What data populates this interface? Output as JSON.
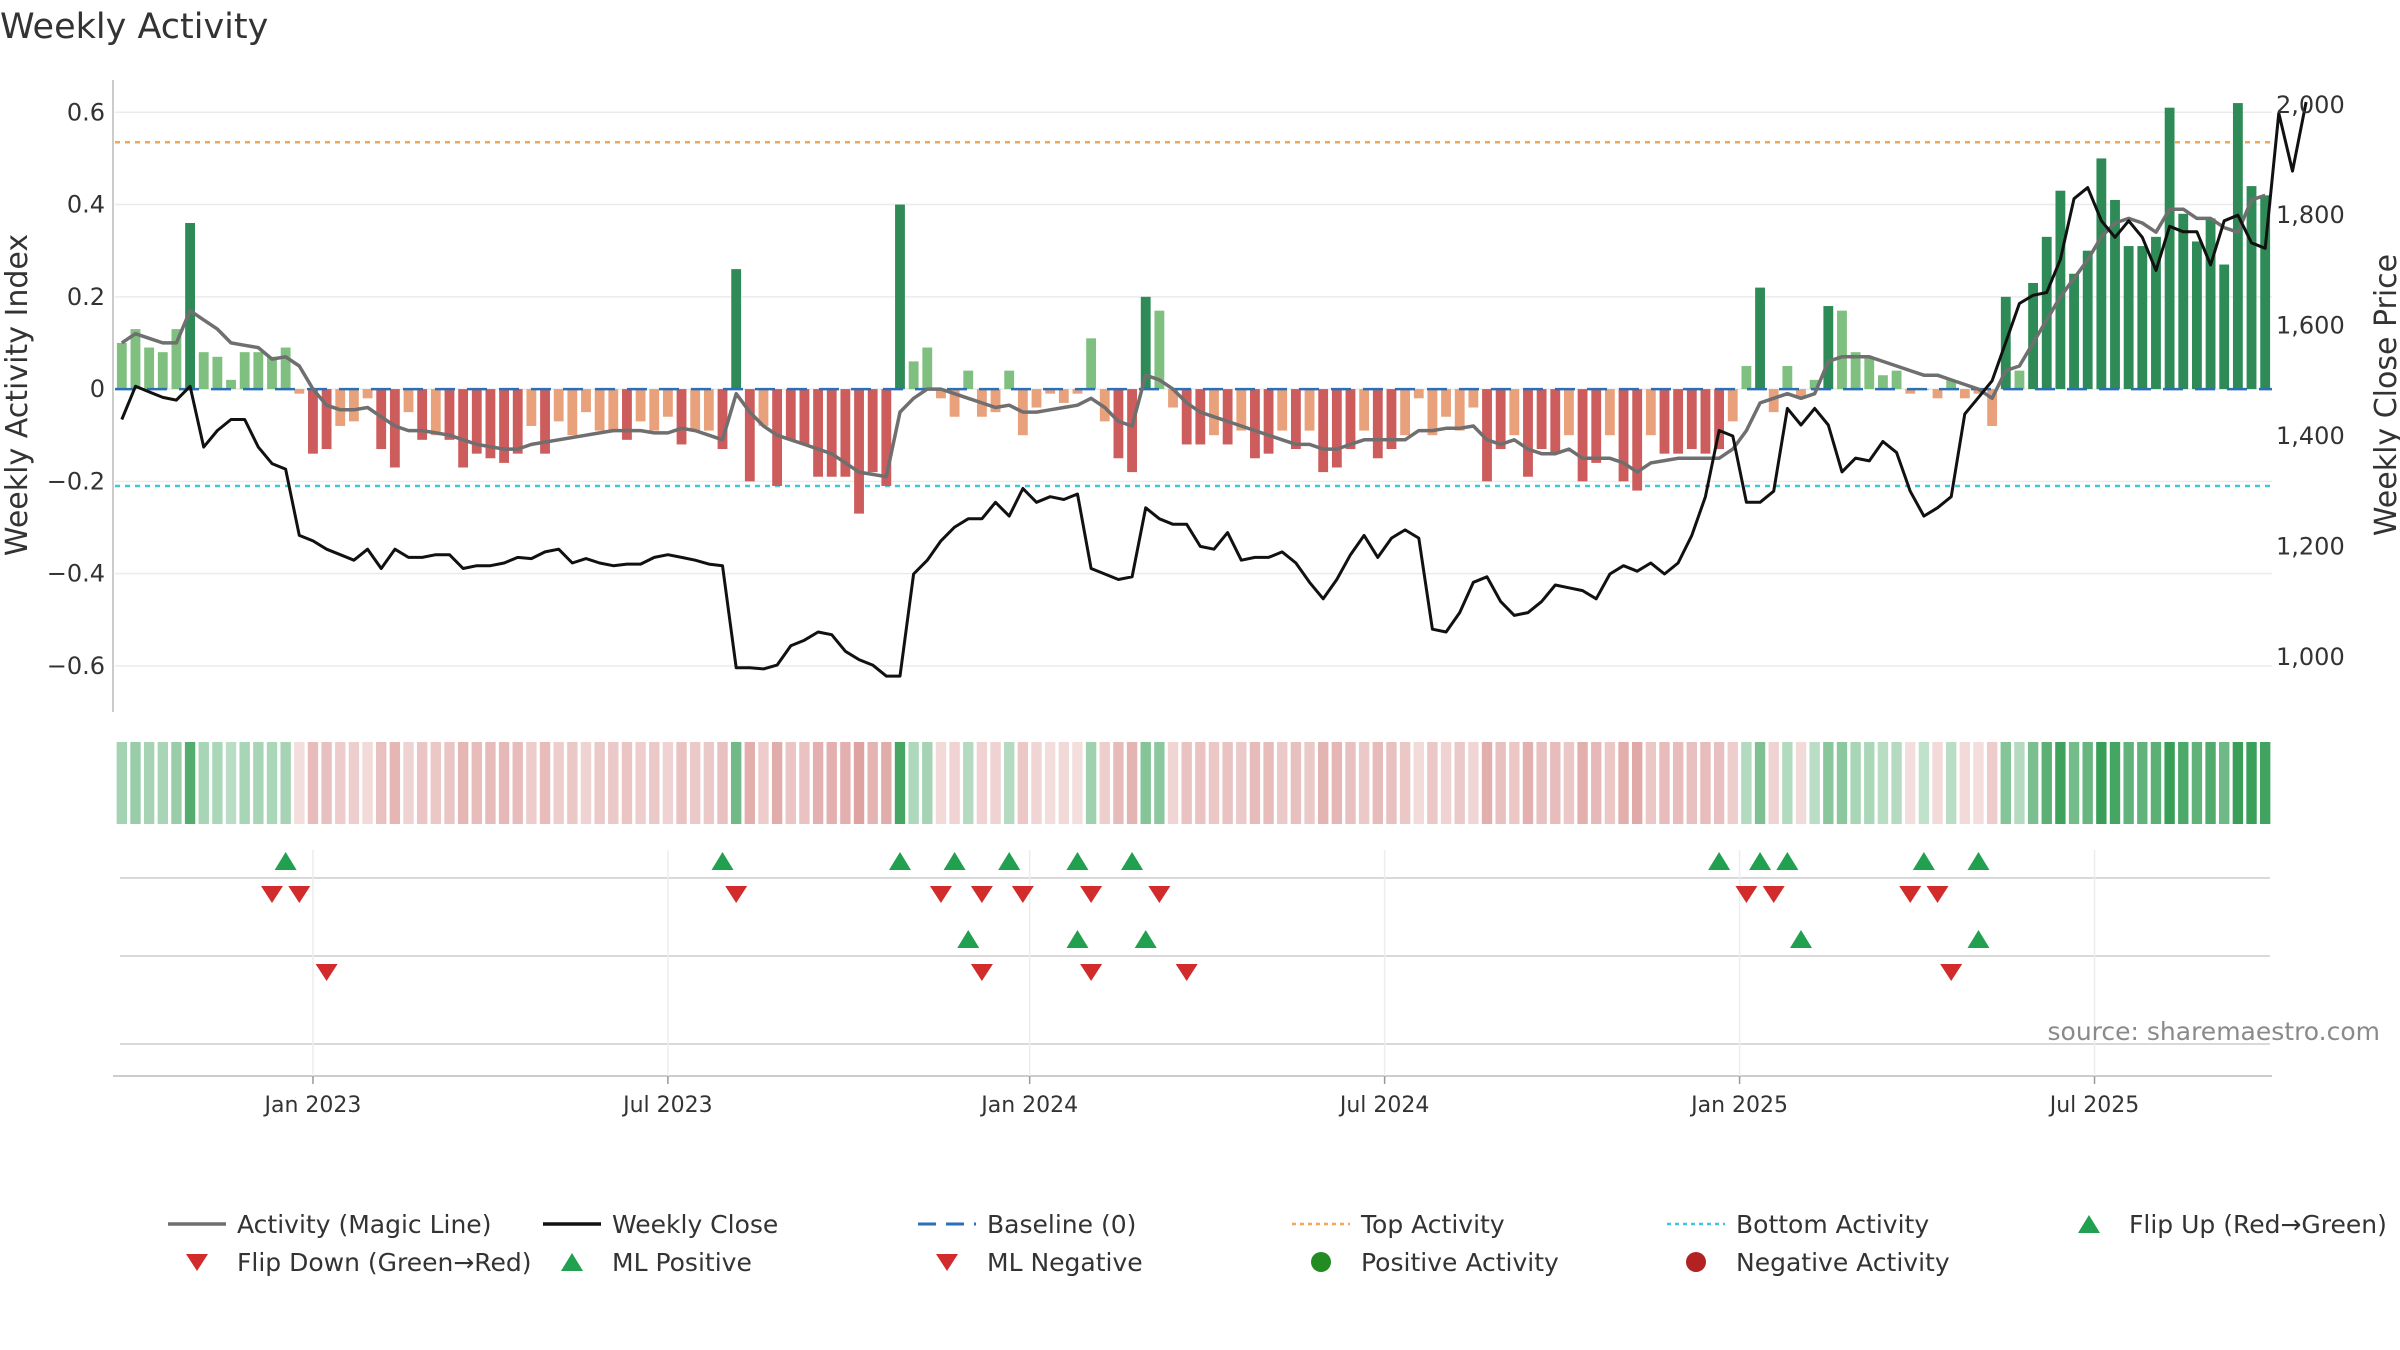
{
  "chart_data": {
    "type": "bar",
    "title": "Weekly Activity",
    "ylabel": "Weekly Activity Index",
    "y2label": "Weekly Close Price",
    "ylim": [
      -0.7,
      0.67
    ],
    "y2lim": [
      900,
      2045
    ],
    "yticks": [
      0.6,
      0.4,
      0.2,
      0,
      -0.2,
      -0.4,
      -0.6
    ],
    "yticklabels": [
      "0.6",
      "0.4",
      "0.2",
      "0",
      "−0.2",
      "−0.4",
      "−0.6"
    ],
    "y2ticks": [
      2000,
      1800,
      1600,
      1400,
      1200,
      1000
    ],
    "y2ticklabels": [
      "2,000",
      "1,800",
      "1,600",
      "1,400",
      "1,200",
      "1,000"
    ],
    "top_activity": 0.535,
    "bottom_activity": -0.21,
    "baseline": 0,
    "xlim": [
      -0.5,
      157.5
    ],
    "xticks": [
      {
        "pos": 14,
        "label": "Jan 2023"
      },
      {
        "pos": 40,
        "label": "Jul 2023"
      },
      {
        "pos": 66.5,
        "label": "Jan 2024"
      },
      {
        "pos": 92.5,
        "label": "Jul 2024"
      },
      {
        "pos": 118.5,
        "label": "Jan 2025"
      },
      {
        "pos": 144.5,
        "label": "Jul 2025"
      }
    ],
    "bar_values": [
      0.1,
      0.13,
      0.09,
      0.08,
      0.13,
      0.36,
      0.08,
      0.07,
      0.02,
      0.08,
      0.08,
      0.07,
      0.09,
      -0.01,
      -0.14,
      -0.13,
      -0.08,
      -0.07,
      -0.02,
      -0.13,
      -0.17,
      -0.05,
      -0.11,
      -0.1,
      -0.11,
      -0.17,
      -0.14,
      -0.15,
      -0.16,
      -0.14,
      -0.08,
      -0.14,
      -0.07,
      -0.1,
      -0.05,
      -0.09,
      -0.09,
      -0.11,
      -0.07,
      -0.09,
      -0.06,
      -0.12,
      -0.09,
      -0.09,
      -0.13,
      0.26,
      -0.2,
      -0.08,
      -0.21,
      -0.11,
      -0.12,
      -0.19,
      -0.19,
      -0.19,
      -0.27,
      -0.18,
      -0.21,
      0.4,
      0.06,
      0.09,
      -0.02,
      -0.06,
      0.04,
      -0.06,
      -0.05,
      0.04,
      -0.1,
      -0.04,
      -0.01,
      -0.03,
      -0.01,
      0.11,
      -0.07,
      -0.15,
      -0.18,
      0.2,
      0.17,
      -0.04,
      -0.12,
      -0.12,
      -0.1,
      -0.12,
      -0.09,
      -0.15,
      -0.14,
      -0.09,
      -0.13,
      -0.09,
      -0.18,
      -0.17,
      -0.13,
      -0.09,
      -0.15,
      -0.13,
      -0.1,
      -0.02,
      -0.1,
      -0.06,
      -0.09,
      -0.04,
      -0.2,
      -0.13,
      -0.1,
      -0.19,
      -0.13,
      -0.14,
      -0.1,
      -0.2,
      -0.16,
      -0.1,
      -0.2,
      -0.22,
      -0.1,
      -0.14,
      -0.14,
      -0.13,
      -0.14,
      -0.13,
      -0.07,
      0.05,
      0.22,
      -0.05,
      0.05,
      -0.02,
      0.02,
      0.18,
      0.17,
      0.08,
      0.07,
      0.03,
      0.04,
      -0.01,
      0,
      -0.02,
      0.02,
      -0.02,
      -0.01,
      -0.08,
      0.2,
      0.04,
      0.23,
      0.33,
      0.43,
      0.25,
      0.3,
      0.5,
      0.41,
      0.31,
      0.31,
      0.33,
      0.61,
      0.38,
      0.32,
      0.37,
      0.27,
      0.62,
      0.44,
      0.42
    ],
    "magic_line": [
      0.1,
      0.12,
      0.11,
      0.1,
      0.1,
      0.17,
      0.15,
      0.13,
      0.1,
      0.095,
      0.09,
      0.065,
      0.07,
      0.05,
      0.0,
      -0.035,
      -0.045,
      -0.045,
      -0.04,
      -0.06,
      -0.08,
      -0.09,
      -0.09,
      -0.095,
      -0.1,
      -0.11,
      -0.12,
      -0.125,
      -0.13,
      -0.13,
      -0.12,
      -0.115,
      -0.11,
      -0.105,
      -0.1,
      -0.095,
      -0.09,
      -0.09,
      -0.09,
      -0.095,
      -0.095,
      -0.085,
      -0.09,
      -0.1,
      -0.11,
      -0.01,
      -0.05,
      -0.08,
      -0.1,
      -0.11,
      -0.12,
      -0.13,
      -0.14,
      -0.16,
      -0.18,
      -0.185,
      -0.19,
      -0.05,
      -0.02,
      0.0,
      0.0,
      -0.01,
      -0.02,
      -0.03,
      -0.04,
      -0.035,
      -0.05,
      -0.05,
      -0.045,
      -0.04,
      -0.035,
      -0.02,
      -0.04,
      -0.07,
      -0.08,
      0.03,
      0.02,
      0.0,
      -0.03,
      -0.05,
      -0.06,
      -0.07,
      -0.08,
      -0.09,
      -0.1,
      -0.11,
      -0.12,
      -0.12,
      -0.13,
      -0.13,
      -0.12,
      -0.11,
      -0.11,
      -0.11,
      -0.11,
      -0.09,
      -0.09,
      -0.085,
      -0.085,
      -0.08,
      -0.11,
      -0.12,
      -0.11,
      -0.13,
      -0.14,
      -0.14,
      -0.13,
      -0.15,
      -0.15,
      -0.15,
      -0.16,
      -0.18,
      -0.16,
      -0.155,
      -0.15,
      -0.15,
      -0.15,
      -0.15,
      -0.13,
      -0.09,
      -0.03,
      -0.02,
      -0.01,
      -0.02,
      -0.01,
      0.06,
      0.07,
      0.07,
      0.07,
      0.06,
      0.05,
      0.04,
      0.03,
      0.03,
      0.02,
      0.01,
      0.0,
      -0.02,
      0.04,
      0.05,
      0.1,
      0.15,
      0.2,
      0.24,
      0.28,
      0.33,
      0.36,
      0.37,
      0.36,
      0.34,
      0.39,
      0.39,
      0.37,
      0.37,
      0.35,
      0.34,
      0.41,
      0.42
    ],
    "close_price": [
      1430,
      1490,
      1480,
      1470,
      1465,
      1490,
      1380,
      1410,
      1430,
      1430,
      1380,
      1350,
      1340,
      1220,
      1210,
      1195,
      1185,
      1175,
      1195,
      1160,
      1195,
      1180,
      1180,
      1185,
      1185,
      1160,
      1165,
      1165,
      1170,
      1180,
      1178,
      1190,
      1195,
      1170,
      1178,
      1170,
      1165,
      1168,
      1168,
      1180,
      1185,
      1180,
      1175,
      1168,
      1165,
      980,
      980,
      978,
      985,
      1020,
      1030,
      1045,
      1040,
      1010,
      995,
      985,
      965,
      965,
      1150,
      1175,
      1210,
      1235,
      1250,
      1250,
      1280,
      1255,
      1305,
      1280,
      1290,
      1285,
      1295,
      1160,
      1150,
      1140,
      1145,
      1270,
      1250,
      1240,
      1240,
      1200,
      1195,
      1225,
      1175,
      1180,
      1180,
      1190,
      1170,
      1135,
      1105,
      1140,
      1185,
      1220,
      1180,
      1215,
      1230,
      1215,
      1050,
      1045,
      1080,
      1135,
      1145,
      1100,
      1075,
      1080,
      1100,
      1130,
      1125,
      1120,
      1105,
      1150,
      1165,
      1155,
      1170,
      1150,
      1170,
      1220,
      1290,
      1410,
      1400,
      1280,
      1280,
      1300,
      1450,
      1420,
      1450,
      1420,
      1335,
      1360,
      1355,
      1390,
      1370,
      1300,
      1255,
      1270,
      1290,
      1440,
      1470,
      1500,
      1570,
      1640,
      1655,
      1660,
      1720,
      1830,
      1850,
      1790,
      1760,
      1790,
      1760,
      1700,
      1780,
      1770,
      1770,
      1710,
      1790,
      1800,
      1750,
      1740,
      1985,
      1880,
      2005
    ],
    "series_legend": [
      {
        "label": "Activity (Magic Line)",
        "marker": "line",
        "color": "#6f6f6f"
      },
      {
        "label": "Weekly Close",
        "marker": "line",
        "color": "#111111"
      },
      {
        "label": "Baseline (0)",
        "marker": "dash",
        "color": "#2b6fb5"
      },
      {
        "label": "Top Activity",
        "marker": "dot",
        "color": "#f2a65a"
      },
      {
        "label": "Bottom Activity",
        "marker": "dot",
        "color": "#3fc7dc"
      },
      {
        "label": "Flip Up (Red→Green)",
        "marker": "tri-up",
        "color": "#21a04f"
      },
      {
        "label": "Flip Down (Green→Red)",
        "marker": "tri-down",
        "color": "#d22b2b"
      },
      {
        "label": "ML Positive",
        "marker": "tri-up",
        "color": "#21a04f"
      },
      {
        "label": "ML Negative",
        "marker": "tri-down",
        "color": "#d22b2b"
      },
      {
        "label": "Positive Activity",
        "marker": "circle",
        "color": "#228b22"
      },
      {
        "label": "Negative Activity",
        "marker": "circle",
        "color": "#b22222"
      }
    ],
    "flip_up": [
      12,
      44,
      57,
      61,
      65,
      70,
      74,
      117,
      120,
      122,
      132,
      136
    ],
    "flip_down": [
      11,
      13,
      45,
      60,
      63,
      66,
      71,
      76,
      119,
      121,
      131,
      133
    ],
    "ml_positive": [
      62,
      70,
      75,
      123,
      136
    ],
    "ml_negative": [
      15,
      63,
      71,
      78,
      134
    ],
    "colors": {
      "strong_green": "#2e8b57",
      "light_green": "#7fbf7f",
      "strong_red": "#cd5c5c",
      "light_red": "#e9a17b",
      "magic_line": "#6f6f6f",
      "close_line": "#111111",
      "baseline": "#2b6fb5",
      "top_line": "#f2a65a",
      "bottom_line": "#3fc7dc",
      "tri_up": "#21a04f",
      "tri_down": "#d22b2b"
    }
  },
  "source": "source: sharemaestro.com"
}
